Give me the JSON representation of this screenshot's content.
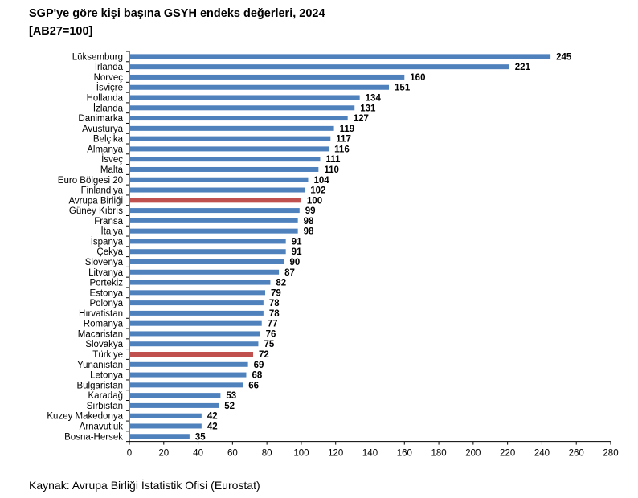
{
  "title_line1": "SGP'ye göre kişi başına GSYH endeks değerleri, 2024",
  "title_line2": "[AB27=100]",
  "source": "Kaynak: Avrupa Birliği İstatistik Ofisi (Eurostat)",
  "chart_data": {
    "type": "bar",
    "orientation": "horizontal",
    "title": "SGP'ye göre kişi başına GSYH endeks değerleri, 2024",
    "subtitle": "[AB27=100]",
    "categories": [
      "Lüksemburg",
      "İrlanda",
      "Norveç",
      "İsviçre",
      "Hollanda",
      "İzlanda",
      "Danimarka",
      "Avusturya",
      "Belçika",
      "Almanya",
      "İsveç",
      "Malta",
      "Euro Bölgesi 20",
      "Finlandiya",
      "Avrupa Birliği",
      "Güney Kıbrıs",
      "Fransa",
      "İtalya",
      "İspanya",
      "Çekya",
      "Slovenya",
      "Litvanya",
      "Portekiz",
      "Estonya",
      "Polonya",
      "Hırvatistan",
      "Romanya",
      "Macaristan",
      "Slovakya",
      "Türkiye",
      "Yunanistan",
      "Letonya",
      "Bulgaristan",
      "Karadağ",
      "Sırbistan",
      "Kuzey Makedonya",
      "Arnavutluk",
      "Bosna-Hersek"
    ],
    "values": [
      245,
      221,
      160,
      151,
      134,
      131,
      127,
      119,
      117,
      116,
      111,
      110,
      104,
      102,
      100,
      99,
      98,
      98,
      91,
      91,
      90,
      87,
      82,
      79,
      78,
      78,
      77,
      76,
      75,
      72,
      69,
      68,
      66,
      53,
      52,
      42,
      42,
      35
    ],
    "highlighted": [
      "Avrupa Birliği",
      "Türkiye"
    ],
    "xlim": [
      0,
      280
    ],
    "xticks": [
      0,
      20,
      40,
      60,
      80,
      100,
      120,
      140,
      160,
      180,
      200,
      220,
      240,
      260,
      280
    ],
    "grid": false,
    "data_labels": true,
    "colors": {
      "default": "#4f81bd",
      "highlight": "#c0504d"
    }
  }
}
